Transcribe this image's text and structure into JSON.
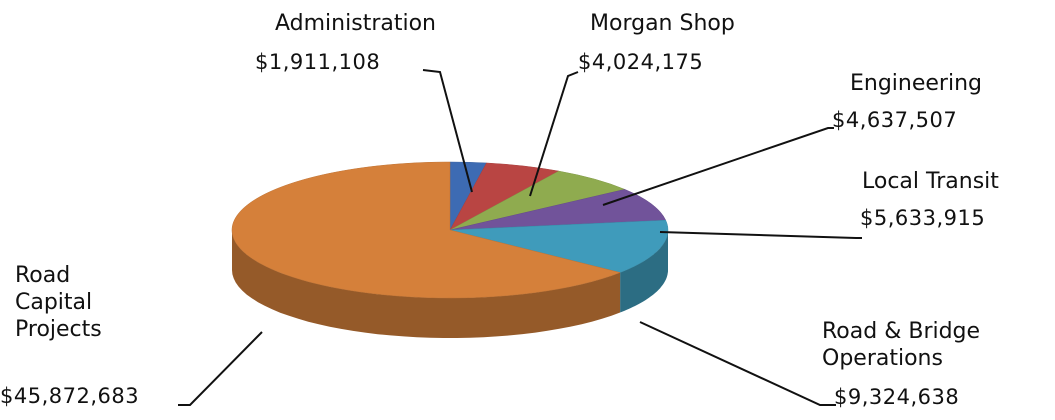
{
  "chart_data": {
    "type": "pie3d",
    "categories": [
      "Administration",
      "Morgan Shop",
      "Engineering",
      "Local Transit",
      "Road & Bridge Operations",
      "Road Capital Projects"
    ],
    "values": [
      1911108,
      4024175,
      4637507,
      5633915,
      9324638,
      45872683
    ],
    "value_labels": [
      "$1,911,108",
      "$4,024,175",
      "$4,637,507",
      "$5,633,915",
      "$9,324,638",
      "$45,872,683"
    ],
    "colors": [
      "#3d6bb3",
      "#b94543",
      "#8fab4f",
      "#71539a",
      "#3f9bbb",
      "#d5803a"
    ]
  }
}
